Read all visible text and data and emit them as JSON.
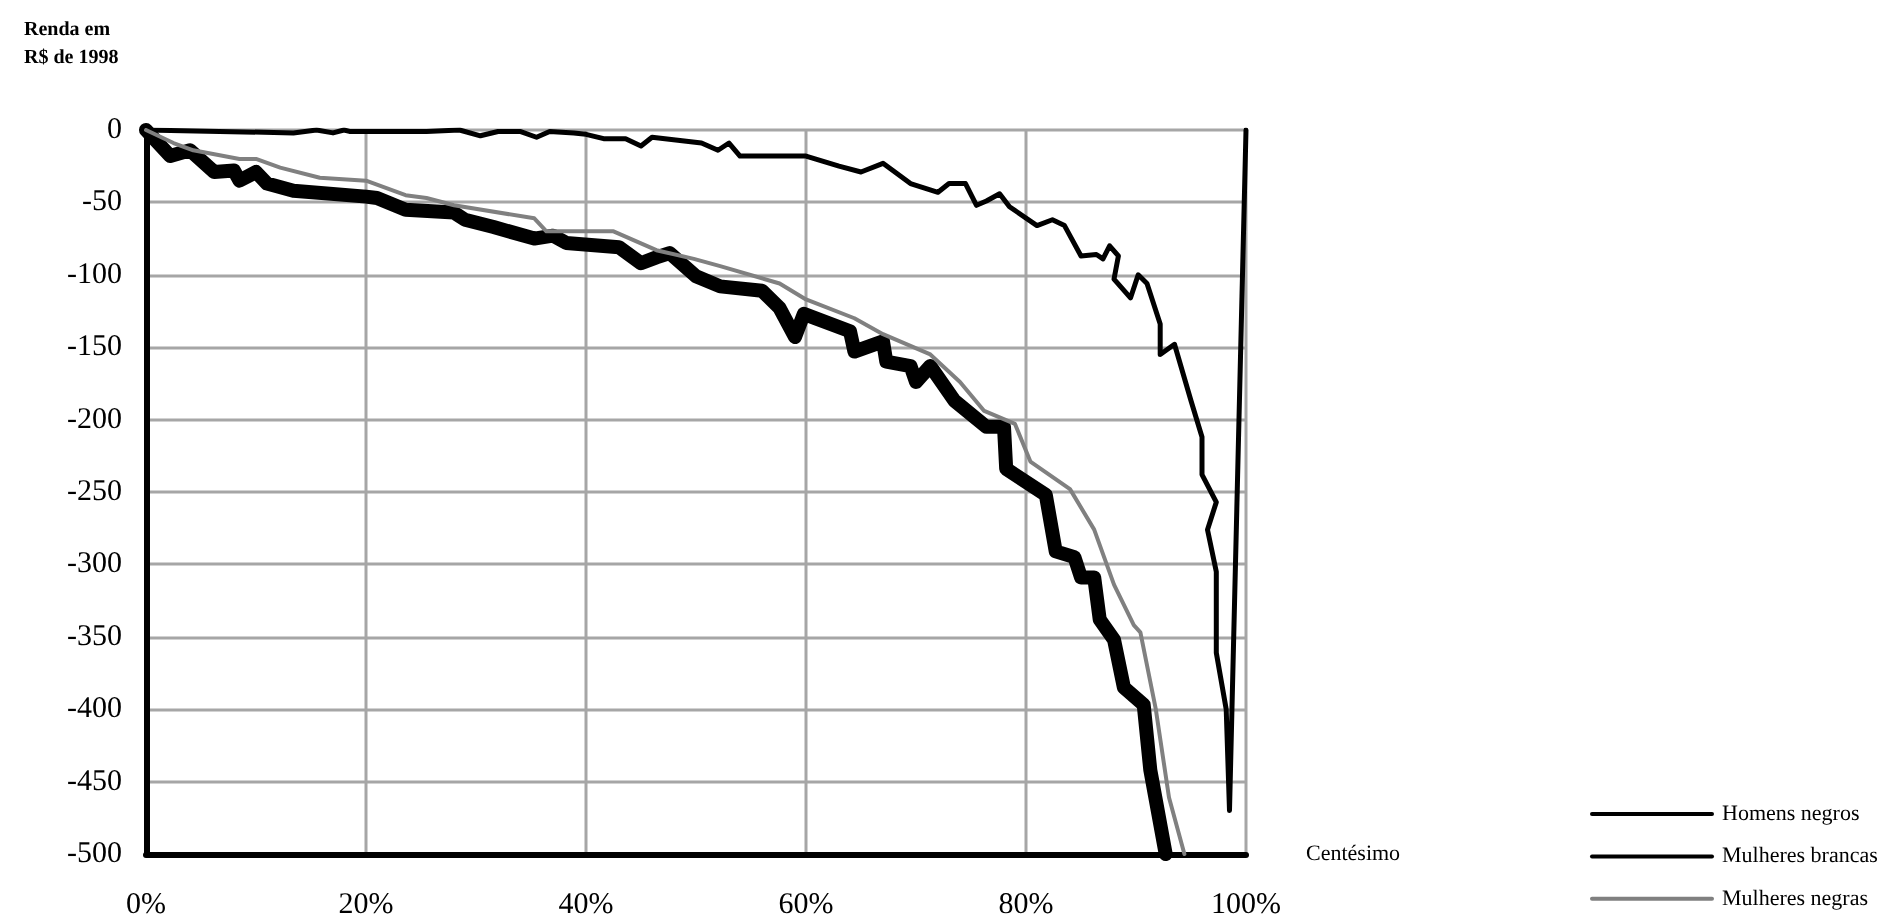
{
  "chart_data": {
    "type": "line",
    "xlabel": "Centésimo",
    "ylabel": "Renda em R$ de 1998",
    "xlim": [
      0,
      100
    ],
    "xticks": [
      {
        "value": 0,
        "label": "0%"
      },
      {
        "value": 20,
        "label": "20%"
      },
      {
        "value": 40,
        "label": "40%"
      },
      {
        "value": 60,
        "label": "60%"
      },
      {
        "value": 80,
        "label": "80%"
      },
      {
        "value": 100,
        "label": "100%"
      }
    ],
    "ylim": [
      -500,
      0
    ],
    "yticks": [
      -500,
      -450,
      -400,
      -350,
      -300,
      -250,
      -200,
      -150,
      -100,
      -50,
      0
    ],
    "grid": true,
    "legend": "bottom right",
    "marker": "none",
    "line_style": "solid",
    "series": [
      {
        "name": "Homens negros",
        "color": "#000000",
        "x": [
          0,
          13.4,
          15.5,
          17,
          18,
          18.5,
          25.5,
          28.5,
          30.4,
          32,
          34,
          35.5,
          36.7,
          38.9,
          40,
          41.6,
          43.6,
          45,
          46,
          50.5,
          52,
          53,
          54,
          60,
          63,
          65,
          67,
          69.5,
          72,
          73,
          74.5,
          75.5,
          76.4,
          77.6,
          78.5,
          81,
          82.4,
          83.5,
          85,
          86.4,
          87,
          87.6,
          88.4,
          88,
          89.5,
          90.2,
          91,
          92.2,
          92.2,
          93.5,
          95,
          96,
          96,
          97.3,
          96.5,
          97.3,
          97.3,
          98.2,
          98.5,
          100
        ],
        "values": [
          0,
          -2,
          0,
          -2,
          0,
          -1,
          -1,
          0,
          -4,
          -1,
          -1,
          -5,
          -1,
          -2,
          -3,
          -6,
          -6,
          -11,
          -5,
          -9,
          -14,
          -9,
          -18,
          -18,
          -25,
          -29,
          -23,
          -37,
          -43,
          -37,
          -37,
          -52,
          -49,
          -44,
          -53,
          -66,
          -62,
          -66,
          -87,
          -86,
          -89,
          -80,
          -87,
          -103,
          -116,
          -100,
          -106,
          -134,
          -155,
          -148,
          -187,
          -212,
          -238,
          -257,
          -276,
          -305,
          -361,
          -400,
          -470,
          0
        ]
      },
      {
        "name": "Mulheres brancas",
        "color": "#000000",
        "x": [
          0,
          2.2,
          4,
          6.2,
          8,
          8.5,
          10,
          11,
          13.4,
          20,
          21,
          23.6,
          28,
          29,
          31.6,
          35.3,
          37,
          38.2,
          43,
          45,
          46.4,
          47.6,
          50,
          52.2,
          56,
          57.6,
          59,
          59.8,
          64,
          64.4,
          67,
          67.3,
          69.5,
          70,
          71.3,
          73.5,
          76.4,
          78,
          78.2,
          81.8,
          82.7,
          84.4,
          85,
          86.2,
          86.7,
          88,
          88.9,
          90.7,
          91.3,
          92.7
        ],
        "values": [
          0,
          -18,
          -14,
          -29,
          -28,
          -35,
          -29,
          -37,
          -42,
          -46,
          -47,
          -55,
          -57,
          -62,
          -67,
          -75,
          -73,
          -78,
          -81,
          -92,
          -88,
          -85,
          -101,
          -108,
          -111,
          -123,
          -143,
          -127,
          -139,
          -153,
          -146,
          -160,
          -163,
          -174,
          -163,
          -187,
          -205,
          -205,
          -234,
          -252,
          -291,
          -295,
          -309,
          -309,
          -338,
          -352,
          -385,
          -397,
          -442,
          -500
        ]
      },
      {
        "name": "Mulheres negras",
        "color": "#808080",
        "x": [
          0,
          2.5,
          4.3,
          8.5,
          10,
          12.2,
          15.8,
          20,
          23.6,
          25.5,
          28,
          35.3,
          36.4,
          42.5,
          46.4,
          49.8,
          52.2,
          57.6,
          60,
          64.4,
          67,
          71.3,
          74,
          76.2,
          79,
          80.4,
          84,
          86.2,
          88,
          89.8,
          90.4,
          91.8,
          93,
          94.4
        ],
        "values": [
          0,
          -9,
          -14,
          -20,
          -20,
          -26,
          -33,
          -35,
          -45,
          -47,
          -52,
          -61,
          -70,
          -70,
          -83,
          -89,
          -94,
          -106,
          -117,
          -130,
          -141,
          -155,
          -174,
          -194,
          -203,
          -229,
          -248,
          -276,
          -314,
          -342,
          -347,
          -400,
          -461,
          -500
        ]
      }
    ]
  }
}
